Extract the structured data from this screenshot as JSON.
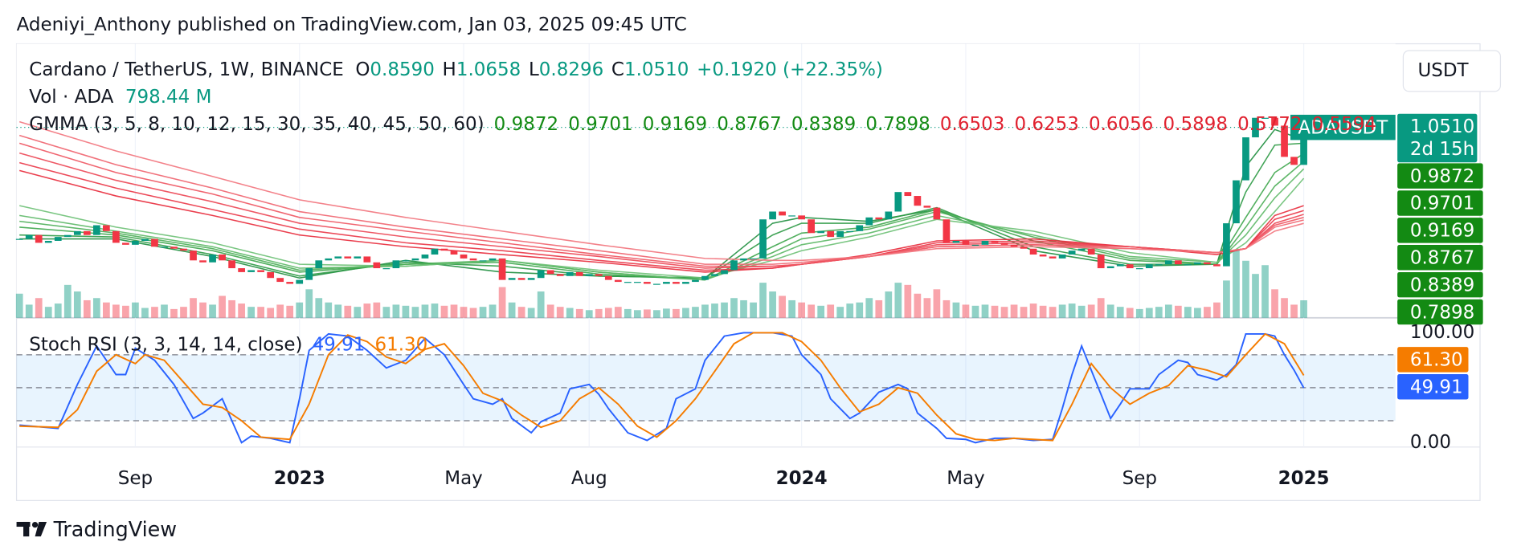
{
  "header": {
    "published": "Adeniyi_Anthony published on TradingView.com, Jan 03, 2025 09:45 UTC"
  },
  "chart_data": {
    "type": "candlestick",
    "title": "Cardano / TetherUS, 1W, BINANCE",
    "ohlc": [
      {
        "label": "O",
        "value": "0.8590"
      },
      {
        "label": "H",
        "value": "1.0658"
      },
      {
        "label": "L",
        "value": "0.8296"
      },
      {
        "label": "C",
        "value": "1.0510"
      }
    ],
    "change": "+0.1920 (+22.35%)",
    "currency": "USDT",
    "symbol_tag": "ADAUSDT",
    "last_price_label": "1.0510",
    "countdown": "2d 15h",
    "up_color": "#089981",
    "down_color": "#f23645",
    "ylim": [
      0.076,
      1.479
    ],
    "categories": [
      null,
      null,
      null,
      null,
      null,
      null,
      null,
      null,
      null,
      null,
      null,
      null,
      "Sep",
      null,
      null,
      null,
      null,
      null,
      null,
      null,
      null,
      null,
      null,
      null,
      null,
      null,
      null,
      null,
      null,
      "2023",
      null,
      null,
      null,
      null,
      null,
      null,
      null,
      null,
      null,
      null,
      null,
      null,
      null,
      null,
      null,
      null,
      "May",
      null,
      null,
      null,
      null,
      null,
      null,
      null,
      null,
      null,
      null,
      null,
      null,
      "Aug",
      null,
      null,
      null,
      null,
      null,
      null,
      null,
      null,
      null,
      null,
      null,
      null,
      null,
      null,
      null,
      null,
      null,
      null,
      null,
      null,
      null,
      "2024",
      null,
      null,
      null,
      null,
      null,
      null,
      null,
      null,
      null,
      null,
      null,
      null,
      null,
      null,
      null,
      null,
      "May",
      null,
      null,
      null,
      null,
      null,
      null,
      null,
      null,
      null,
      null,
      null,
      null,
      null,
      null,
      null,
      null,
      null,
      "Sep",
      null,
      null,
      null,
      null,
      null,
      null,
      null,
      null,
      null,
      null,
      null,
      null,
      null,
      null,
      null,
      null,
      "2025"
    ],
    "closes": [
      0.48,
      0.5,
      0.46,
      0.47,
      0.49,
      0.5,
      0.52,
      0.5,
      0.55,
      0.52,
      0.46,
      0.45,
      0.47,
      0.48,
      0.44,
      0.44,
      0.43,
      0.42,
      0.37,
      0.36,
      0.4,
      0.37,
      0.33,
      0.31,
      0.32,
      0.31,
      0.28,
      0.26,
      0.25,
      0.27,
      0.33,
      0.37,
      0.38,
      0.39,
      0.38,
      0.39,
      0.36,
      0.33,
      0.33,
      0.37,
      0.37,
      0.38,
      0.4,
      0.43,
      0.42,
      0.4,
      0.38,
      0.37,
      0.37,
      0.38,
      0.27,
      0.28,
      0.27,
      0.28,
      0.32,
      0.3,
      0.29,
      0.31,
      0.29,
      0.3,
      0.29,
      0.27,
      0.26,
      0.26,
      0.26,
      0.25,
      0.25,
      0.26,
      0.25,
      0.26,
      0.27,
      0.29,
      0.3,
      0.32,
      0.37,
      0.38,
      0.38,
      0.58,
      0.62,
      0.6,
      0.6,
      0.58,
      0.51,
      0.52,
      0.49,
      0.52,
      0.52,
      0.55,
      0.59,
      0.58,
      0.62,
      0.72,
      0.7,
      0.65,
      0.64,
      0.58,
      0.46,
      0.47,
      0.45,
      0.45,
      0.47,
      0.46,
      0.45,
      0.44,
      0.43,
      0.4,
      0.39,
      0.38,
      0.4,
      0.42,
      0.43,
      0.4,
      0.33,
      0.34,
      0.35,
      0.33,
      0.33,
      0.35,
      0.35,
      0.37,
      0.35,
      0.35,
      0.36,
      0.35,
      0.34,
      0.56,
      0.78,
      1.0,
      1.1,
      1.1,
      1.06,
      0.9,
      0.859,
      1.051
    ],
    "volume": {
      "title": "Vol · ADA",
      "legend_value": "798.44 M",
      "values": [
        1100,
        600,
        900,
        500,
        650,
        1500,
        1200,
        800,
        900,
        700,
        600,
        550,
        700,
        450,
        500,
        600,
        400,
        500,
        900,
        700,
        600,
        1000,
        800,
        650,
        500,
        500,
        450,
        600,
        550,
        700,
        1300,
        900,
        700,
        600,
        550,
        500,
        650,
        700,
        500,
        600,
        550,
        500,
        600,
        650,
        550,
        600,
        500,
        450,
        500,
        600,
        1400,
        700,
        500,
        450,
        1200,
        600,
        500,
        450,
        400,
        350,
        400,
        450,
        500,
        400,
        350,
        380,
        350,
        420,
        400,
        450,
        500,
        600,
        650,
        700,
        900,
        800,
        700,
        1600,
        1200,
        1000,
        800,
        700,
        600,
        550,
        600,
        500,
        650,
        700,
        900,
        800,
        1200,
        1600,
        1500,
        1100,
        900,
        1300,
        800,
        700,
        600,
        550,
        600,
        550,
        500,
        600,
        500,
        650,
        550,
        500,
        600,
        650,
        550,
        600,
        900,
        600,
        500,
        450,
        400,
        450,
        500,
        600,
        550,
        500,
        450,
        500,
        700,
        1700,
        3100,
        2600,
        2000,
        2400,
        1300,
        900,
        600,
        798.44
      ]
    },
    "gmma": {
      "title": "GMMA (3, 5, 8, 10, 12, 15, 30, 35, 40, 45, 50, 60)",
      "x": [
        0,
        10,
        20,
        29,
        40,
        50,
        60,
        71,
        78,
        81,
        88,
        95,
        105,
        115,
        124,
        127,
        130,
        133
      ],
      "series": [
        {
          "color": "#1e8e3e",
          "values": [
            0.48,
            0.48,
            0.39,
            0.28,
            0.37,
            0.31,
            0.29,
            0.28,
            0.56,
            0.59,
            0.57,
            0.63,
            0.42,
            0.34,
            0.35,
            0.85,
            1.04,
            0.9872
          ]
        },
        {
          "color": "#2e9a45",
          "values": [
            0.5,
            0.49,
            0.4,
            0.29,
            0.36,
            0.34,
            0.29,
            0.28,
            0.5,
            0.56,
            0.56,
            0.64,
            0.44,
            0.35,
            0.35,
            0.72,
            0.96,
            0.9701
          ]
        },
        {
          "color": "#3ea64d",
          "values": [
            0.54,
            0.5,
            0.42,
            0.31,
            0.35,
            0.36,
            0.3,
            0.27,
            0.44,
            0.51,
            0.54,
            0.63,
            0.47,
            0.37,
            0.35,
            0.59,
            0.82,
            0.9169
          ]
        },
        {
          "color": "#4cae58",
          "values": [
            0.57,
            0.51,
            0.43,
            0.32,
            0.35,
            0.37,
            0.31,
            0.27,
            0.41,
            0.48,
            0.53,
            0.62,
            0.49,
            0.38,
            0.35,
            0.54,
            0.75,
            0.8767
          ]
        },
        {
          "color": "#5cb866",
          "values": [
            0.6,
            0.52,
            0.44,
            0.33,
            0.34,
            0.37,
            0.31,
            0.27,
            0.39,
            0.45,
            0.51,
            0.6,
            0.5,
            0.39,
            0.36,
            0.5,
            0.69,
            0.8389
          ]
        },
        {
          "color": "#6cc074",
          "values": [
            0.65,
            0.54,
            0.46,
            0.35,
            0.34,
            0.37,
            0.32,
            0.28,
            0.37,
            0.42,
            0.49,
            0.58,
            0.52,
            0.41,
            0.36,
            0.46,
            0.62,
            0.7898
          ]
        },
        {
          "color": "#e8293a",
          "values": [
            0.83,
            0.7,
            0.6,
            0.5,
            0.44,
            0.4,
            0.36,
            0.31,
            0.33,
            0.35,
            0.4,
            0.47,
            0.48,
            0.44,
            0.4,
            0.43,
            0.6,
            0.6503
          ]
        },
        {
          "color": "#ea3546",
          "values": [
            0.87,
            0.74,
            0.63,
            0.53,
            0.46,
            0.42,
            0.37,
            0.32,
            0.33,
            0.35,
            0.39,
            0.46,
            0.47,
            0.44,
            0.41,
            0.43,
            0.58,
            0.6253
          ]
        },
        {
          "color": "#ec4553",
          "values": [
            0.92,
            0.78,
            0.67,
            0.56,
            0.49,
            0.44,
            0.39,
            0.33,
            0.34,
            0.35,
            0.39,
            0.45,
            0.46,
            0.44,
            0.41,
            0.43,
            0.56,
            0.6056
          ]
        },
        {
          "color": "#ee5460",
          "values": [
            0.97,
            0.82,
            0.71,
            0.59,
            0.52,
            0.46,
            0.4,
            0.34,
            0.34,
            0.35,
            0.39,
            0.44,
            0.45,
            0.44,
            0.41,
            0.43,
            0.55,
            0.5898
          ]
        },
        {
          "color": "#f0636e",
          "values": [
            1.01,
            0.86,
            0.74,
            0.62,
            0.54,
            0.48,
            0.42,
            0.35,
            0.35,
            0.36,
            0.39,
            0.44,
            0.45,
            0.43,
            0.41,
            0.43,
            0.54,
            0.5772
          ]
        },
        {
          "color": "#f2737c",
          "values": [
            1.08,
            0.93,
            0.8,
            0.68,
            0.59,
            0.52,
            0.45,
            0.38,
            0.37,
            0.37,
            0.39,
            0.43,
            0.44,
            0.43,
            0.41,
            0.43,
            0.52,
            0.5594
          ]
        }
      ]
    },
    "stoch": {
      "type": "line",
      "title": "Stoch RSI (3, 3, 14, 14, close)",
      "ylim": [
        -4,
        111
      ],
      "yticks": [
        {
          "value": 100,
          "label": "100.00"
        },
        {
          "value": 0,
          "label": "0.00"
        }
      ],
      "bands": [
        80,
        50,
        20
      ],
      "series": [
        {
          "color": "#2962ff",
          "x": [
            0,
            4,
            6,
            8,
            10,
            11,
            12,
            14,
            16,
            18,
            19,
            21,
            23,
            24,
            26,
            28,
            29,
            30,
            32,
            34,
            36,
            38,
            40,
            42,
            44,
            46,
            47,
            49,
            50,
            51,
            53,
            54,
            56,
            57,
            59,
            60,
            61,
            63,
            65,
            67,
            68,
            70,
            71,
            73,
            75,
            78,
            80,
            81,
            83,
            84,
            86,
            87,
            89,
            91,
            92,
            93,
            95,
            96,
            98,
            99,
            101,
            103,
            105,
            107,
            108,
            109,
            110,
            111,
            112,
            113,
            114,
            115,
            117,
            118,
            120,
            121,
            122,
            124,
            125,
            126,
            127,
            129,
            130,
            131,
            132,
            133
          ],
          "values": [
            16,
            13,
            53,
            88,
            62,
            62,
            86,
            75,
            53,
            22,
            27,
            40,
            0,
            6,
            4,
            0,
            40,
            84,
            99,
            97,
            84,
            68,
            75,
            95,
            80,
            53,
            40,
            35,
            40,
            22,
            9,
            19,
            27,
            49,
            53,
            44,
            31,
            9,
            2,
            13,
            40,
            49,
            75,
            97,
            100,
            100,
            97,
            80,
            62,
            40,
            22,
            27,
            46,
            53,
            49,
            27,
            13,
            4,
            3,
            0,
            4,
            4,
            2,
            3,
            31,
            62,
            88,
            66,
            44,
            22,
            35,
            49,
            49,
            62,
            75,
            73,
            62,
            57,
            62,
            71,
            99,
            99,
            97,
            80,
            66,
            49.91
          ]
        },
        {
          "color": "#f57c00",
          "x": [
            0,
            4,
            6,
            8,
            10,
            12,
            13,
            15,
            17,
            19,
            21,
            23,
            25,
            28,
            30,
            32,
            34,
            36,
            38,
            40,
            42,
            44,
            46,
            48,
            50,
            52,
            54,
            56,
            58,
            60,
            62,
            64,
            66,
            68,
            70,
            72,
            74,
            76,
            79,
            81,
            83,
            85,
            87,
            89,
            91,
            93,
            95,
            97,
            99,
            101,
            103,
            105,
            107,
            109,
            111,
            113,
            115,
            117,
            119,
            121,
            123,
            125,
            127,
            129,
            131,
            133
          ],
          "values": [
            15,
            14,
            30,
            65,
            80,
            72,
            80,
            75,
            55,
            35,
            32,
            20,
            5,
            3,
            35,
            80,
            98,
            92,
            78,
            72,
            85,
            90,
            70,
            45,
            38,
            25,
            14,
            20,
            40,
            50,
            35,
            15,
            5,
            20,
            40,
            65,
            90,
            100,
            100,
            92,
            75,
            50,
            28,
            35,
            50,
            45,
            25,
            8,
            3,
            2,
            4,
            3,
            2,
            35,
            72,
            50,
            35,
            45,
            52,
            70,
            66,
            60,
            80,
            99,
            90,
            61.3
          ],
          "last_label": "61.30"
        }
      ]
    }
  },
  "footer": {
    "brand": "TradingView"
  }
}
